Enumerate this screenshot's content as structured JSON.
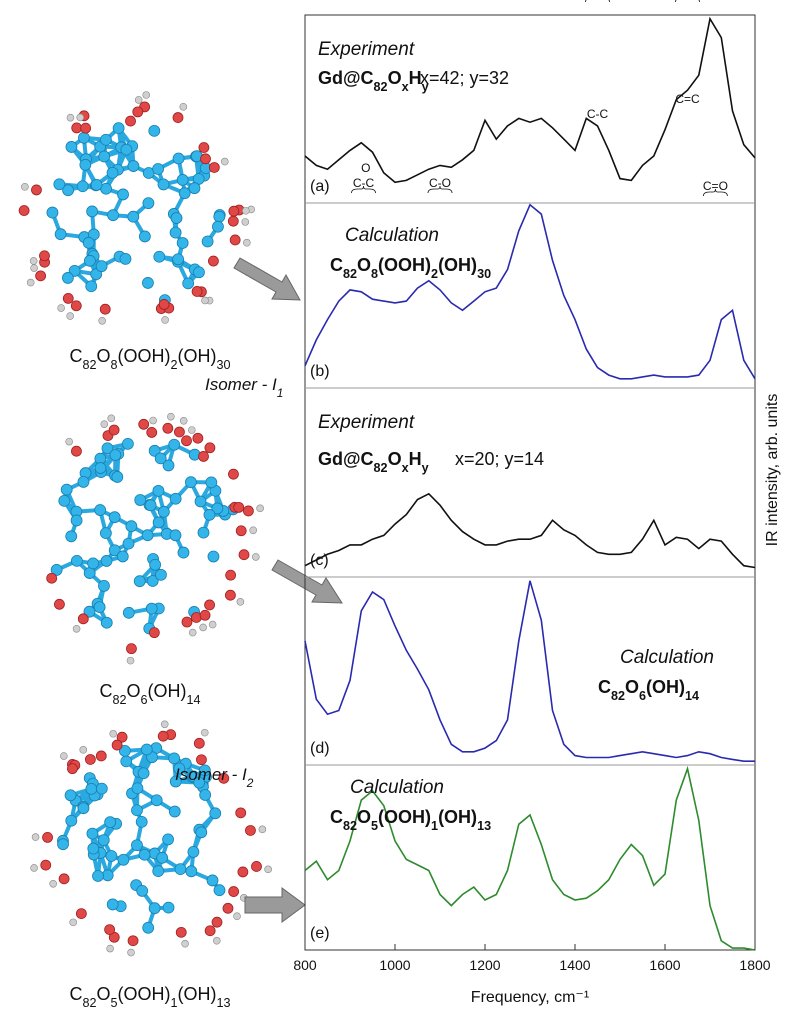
{
  "figure": {
    "ylabel": "IR intensity, arb. units",
    "molecules": [
      {
        "formula": "C82O8(OOH)2(OH)30"
      },
      {
        "formula": "C82O6(OH)14",
        "isomer": "Isomer - I1"
      },
      {
        "formula": "C82O5(OOH)1(OH)13",
        "isomer": "Isomer - I2"
      }
    ]
  },
  "chart_data": [
    {
      "type": "line",
      "label": "(a)",
      "title": "Experiment",
      "subtitle": "Gd@C82OxHy",
      "note": "x=42; y=32",
      "color": "#111111",
      "annotations": [
        "O",
        "C-C",
        "C-O",
        "C-C",
        "C=C",
        "C=O"
      ],
      "xlim": [
        800,
        1800
      ],
      "ylim": [
        0,
        100
      ],
      "x": [
        800,
        825,
        850,
        875,
        900,
        925,
        950,
        975,
        1000,
        1025,
        1050,
        1075,
        1100,
        1125,
        1150,
        1175,
        1200,
        1225,
        1250,
        1275,
        1300,
        1325,
        1350,
        1375,
        1400,
        1425,
        1450,
        1475,
        1500,
        1525,
        1550,
        1575,
        1600,
        1625,
        1650,
        1675,
        1700,
        1725,
        1750,
        1775,
        1800
      ],
      "values": [
        25,
        20,
        18,
        23,
        28,
        32,
        27,
        16,
        11,
        12,
        15,
        18,
        20,
        19,
        23,
        28,
        44,
        34,
        41,
        45,
        43,
        45,
        40,
        34,
        28,
        45,
        41,
        28,
        13,
        12,
        20,
        25,
        39,
        55,
        60,
        68,
        98,
        88,
        49,
        31,
        24
      ]
    },
    {
      "type": "line",
      "label": "(b)",
      "title": "Calculation",
      "subtitle": "C82O8(OOH)2(OH)30",
      "color": "#2a2ab0",
      "xlim": [
        800,
        1800
      ],
      "ylim": [
        0,
        100
      ],
      "x": [
        800,
        825,
        850,
        875,
        900,
        925,
        950,
        975,
        1000,
        1025,
        1050,
        1075,
        1100,
        1125,
        1150,
        1175,
        1200,
        1225,
        1250,
        1275,
        1300,
        1325,
        1350,
        1375,
        1400,
        1425,
        1450,
        1475,
        1500,
        1525,
        1550,
        1575,
        1600,
        1625,
        1650,
        1675,
        1700,
        1725,
        1750,
        1775,
        1800
      ],
      "values": [
        12,
        26,
        37,
        47,
        53,
        52,
        48,
        47,
        46,
        47,
        54,
        58,
        53,
        46,
        42,
        47,
        52,
        54,
        64,
        85,
        99,
        94,
        69,
        50,
        37,
        21,
        11,
        7,
        5,
        5,
        6,
        7,
        6,
        6,
        6,
        7,
        15,
        37,
        42,
        15,
        5
      ]
    },
    {
      "type": "line",
      "label": "(c)",
      "title": "Experiment",
      "subtitle": "Gd@C82OxHy",
      "note": "x=20; y=14",
      "color": "#111111",
      "xlim": [
        800,
        1800
      ],
      "ylim": [
        0,
        100
      ],
      "x": [
        800,
        825,
        850,
        875,
        900,
        925,
        950,
        975,
        1000,
        1025,
        1050,
        1075,
        1100,
        1125,
        1150,
        1175,
        1200,
        1225,
        1250,
        1275,
        1300,
        1325,
        1350,
        1375,
        1400,
        1425,
        1450,
        1475,
        1500,
        1525,
        1550,
        1575,
        1600,
        1625,
        1650,
        1675,
        1700,
        1725,
        1750,
        1775,
        1800
      ],
      "values": [
        6,
        9,
        12,
        14,
        17,
        17,
        20,
        22,
        28,
        33,
        41,
        44,
        38,
        30,
        24,
        20,
        17,
        17,
        19,
        20,
        20,
        22,
        30,
        25,
        22,
        17,
        13,
        12,
        12,
        13,
        20,
        30,
        17,
        21,
        20,
        15,
        20,
        19,
        12,
        6,
        5
      ]
    },
    {
      "type": "line",
      "label": "(d)",
      "title": "Calculation",
      "subtitle": "C82O6(OH)14",
      "color": "#2a2ab0",
      "xlim": [
        800,
        1800
      ],
      "ylim": [
        0,
        100
      ],
      "x": [
        800,
        825,
        850,
        875,
        900,
        925,
        950,
        975,
        1000,
        1025,
        1050,
        1075,
        1100,
        1125,
        1150,
        1175,
        1200,
        1225,
        1250,
        1275,
        1300,
        1325,
        1350,
        1375,
        1400,
        1425,
        1450,
        1475,
        1500,
        1525,
        1550,
        1575,
        1600,
        1625,
        1650,
        1675,
        1700,
        1725,
        1750,
        1775,
        1800
      ],
      "values": [
        66,
        35,
        27,
        29,
        45,
        82,
        92,
        88,
        74,
        61,
        51,
        40,
        24,
        11,
        7,
        7,
        9,
        13,
        24,
        66,
        98,
        77,
        29,
        11,
        5,
        4,
        4,
        4,
        5,
        6,
        7,
        6,
        5,
        4,
        5,
        7,
        6,
        4,
        3,
        2,
        2
      ]
    },
    {
      "type": "line",
      "label": "(e)",
      "title": "Calculation",
      "subtitle": "C82O5(OOH)1(OH)13",
      "color": "#2e8b2e",
      "xlim": [
        800,
        1800
      ],
      "ylim": [
        0,
        100
      ],
      "xticks": [
        800,
        1000,
        1200,
        1400,
        1600,
        1800
      ],
      "xlabel": "Frequency, cm⁻¹",
      "x": [
        800,
        825,
        850,
        875,
        900,
        925,
        950,
        975,
        1000,
        1025,
        1050,
        1075,
        1100,
        1125,
        1150,
        1175,
        1200,
        1225,
        1250,
        1275,
        1300,
        1325,
        1350,
        1375,
        1400,
        1425,
        1450,
        1475,
        1500,
        1525,
        1550,
        1575,
        1600,
        1625,
        1650,
        1675,
        1700,
        1725,
        1750,
        1775,
        1800
      ],
      "values": [
        43,
        48,
        38,
        43,
        59,
        81,
        86,
        78,
        59,
        49,
        46,
        43,
        30,
        24,
        30,
        34,
        27,
        30,
        43,
        68,
        73,
        57,
        38,
        30,
        27,
        28,
        32,
        38,
        49,
        57,
        51,
        35,
        41,
        81,
        98,
        70,
        24,
        5,
        1,
        1,
        0
      ]
    }
  ]
}
